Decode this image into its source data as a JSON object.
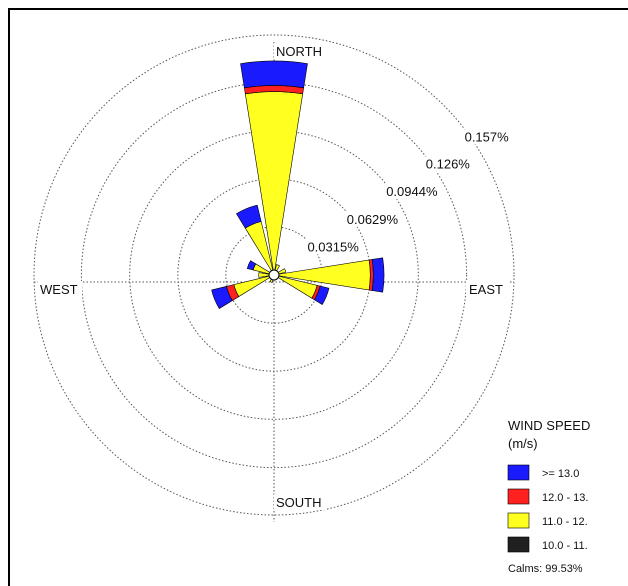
{
  "chart_data": {
    "type": "windrose",
    "direction_labels": {
      "north": "NORTH",
      "east": "EAST",
      "south": "SOUTH",
      "west": "WEST"
    },
    "ring_labels": [
      "0.0315%",
      "0.0629%",
      "0.0944%",
      "0.126%",
      "0.157%"
    ],
    "ring_values": [
      0.0315,
      0.0629,
      0.0944,
      0.126,
      0.157
    ],
    "unit": "%",
    "legend": {
      "title_line1": "WIND SPEED",
      "title_line2": "(m/s)",
      "calms": "Calms: 99.53%"
    },
    "bins": [
      {
        "label": ">= 13.0",
        "color": "#1a1aff"
      },
      {
        "label": "12.0 - 13.",
        "color": "#ff2020"
      },
      {
        "label": "11.0 - 12.",
        "color": "#ffff20"
      },
      {
        "label": "10.0 - 11.",
        "color": "#202020"
      }
    ],
    "directions": [
      {
        "dir": 0,
        "values": [
          0.016,
          0.004,
          0.12,
          0.0
        ]
      },
      {
        "dir": 22.5,
        "values": [
          0.0,
          0.0,
          0.005,
          0.002
        ]
      },
      {
        "dir": 67.5,
        "values": [
          0.0,
          0.0,
          0.006,
          0.002
        ]
      },
      {
        "dir": 90,
        "values": [
          0.007,
          0.002,
          0.062,
          0.001
        ]
      },
      {
        "dir": 112.5,
        "values": [
          0.006,
          0.002,
          0.026,
          0.003
        ]
      },
      {
        "dir": 157.5,
        "values": [
          0.0,
          0.0,
          0.002,
          0.0
        ]
      },
      {
        "dir": 202.5,
        "values": [
          0.0,
          0.0,
          0.003,
          0.002
        ]
      },
      {
        "dir": 247.5,
        "values": [
          0.01,
          0.005,
          0.026,
          0.001
        ]
      },
      {
        "dir": 270,
        "values": [
          0.0,
          0.0,
          0.008,
          0.002
        ]
      },
      {
        "dir": 292.5,
        "values": [
          0.004,
          0.0,
          0.012,
          0.002
        ]
      },
      {
        "dir": 337.5,
        "values": [
          0.011,
          0.0,
          0.034,
          0.002
        ]
      }
    ]
  }
}
